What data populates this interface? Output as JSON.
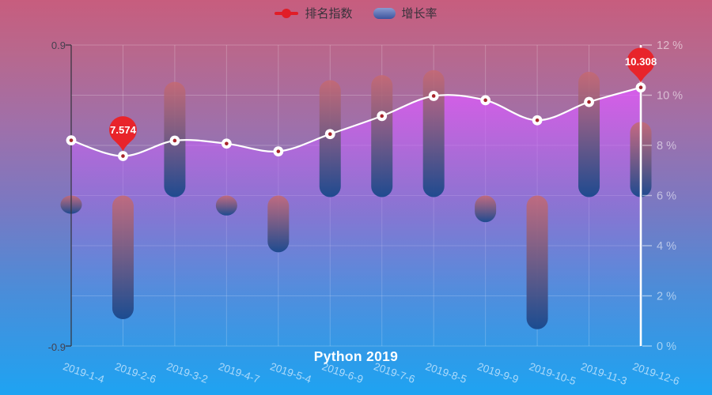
{
  "title": {
    "text": "Python 2019"
  },
  "legend": {
    "items": [
      {
        "label": "排名指数",
        "marker": "line-dot",
        "color": "#e11d27"
      },
      {
        "label": "增长率",
        "marker": "capsule",
        "color_top": "#8a9bd0",
        "color_bottom": "#3c549e"
      }
    ]
  },
  "chart_data": {
    "type": "combo",
    "title": "Python 2019",
    "legend_position": "top-center",
    "grid": true,
    "categories": [
      "2019-1-4",
      "2019-2-6",
      "2019-3-2",
      "2019-4-7",
      "2019-5-4",
      "2019-6-9",
      "2019-7-6",
      "2019-8-5",
      "2019-9-9",
      "2019-10-5",
      "2019-11-3",
      "2019-12-6"
    ],
    "series": [
      {
        "name": "排名指数",
        "type": "line",
        "axis": "right",
        "smooth": true,
        "color": "#ffffff",
        "marker": "white-circle-red-dot",
        "values": [
          8.2,
          7.574,
          8.19,
          8.07,
          7.76,
          8.45,
          9.17,
          9.97,
          9.8,
          9.0,
          9.73,
          10.308
        ]
      },
      {
        "name": "增长率",
        "type": "bar",
        "axis": "left",
        "bar_color_top": "#c66972",
        "bar_color_bottom": "#19488c",
        "values": [
          -0.1,
          -0.73,
          0.68,
          -0.11,
          -0.33,
          0.69,
          0.72,
          0.75,
          -0.15,
          -0.79,
          0.74,
          0.44
        ]
      }
    ],
    "left_axis": {
      "min": -0.9,
      "max": 0.9,
      "ticks": [
        "0.9",
        "-0.9"
      ]
    },
    "right_axis": {
      "min": 0,
      "max": 12,
      "tick_values": [
        12,
        10,
        8,
        6,
        4,
        2,
        0
      ],
      "tick_labels": [
        "12 %",
        "10 %",
        "8 %",
        "6 %",
        "4 %",
        "2 %",
        "0 %"
      ]
    },
    "annotations": {
      "pins": [
        {
          "category_index": 1,
          "label": "7.574",
          "color": "#e8242b"
        },
        {
          "category_index": 11,
          "label": "10.308",
          "color": "#e8242b"
        }
      ],
      "vertical_line_index": 11,
      "vertical_line_color": "#ffffff"
    }
  }
}
